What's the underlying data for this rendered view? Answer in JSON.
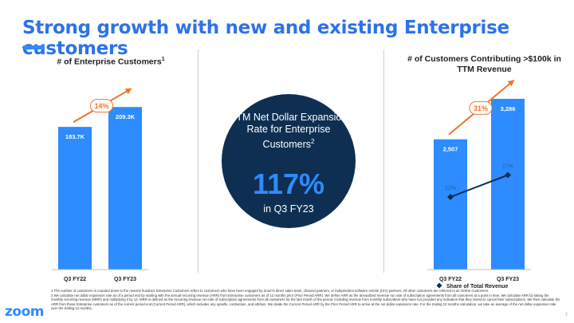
{
  "title": "Strong growth with new and existing Enterprise customers",
  "left_panel": {
    "title_main": "# of Enterprise Customers",
    "title_sup": "1",
    "growth_badge": "14%"
  },
  "center": {
    "text_main": "TTM Net Dollar Expansion Rate for Enterprise Customers",
    "text_sup": "2",
    "value": "117%",
    "subtext": "in Q3 FY23"
  },
  "right_panel": {
    "title": "# of Customers Contributing >$100k in TTM Revenue",
    "growth_badge": "31%",
    "legend_label": "Share of Total Revenue"
  },
  "chart_data": [
    {
      "type": "bar",
      "title": "# of Enterprise Customers",
      "categories": [
        "Q3 FY22",
        "Q3 FY23"
      ],
      "values": [
        183.7,
        209.3
      ],
      "labels": [
        "183.7K",
        "209.3K"
      ],
      "ylim": [
        0,
        230
      ],
      "grid": false
    },
    {
      "type": "bar",
      "title": "# of Customers Contributing >$100k in TTM Revenue",
      "categories": [
        "Q3 FY22",
        "Q3 FY23"
      ],
      "values": [
        2507,
        3286
      ],
      "labels": [
        "2,507",
        "3,286"
      ],
      "ylim": [
        0,
        3500
      ],
      "grid": false,
      "line_series": {
        "name": "Share of Total Revenue",
        "values": [
          22,
          27
        ],
        "labels": [
          "22%",
          "27%"
        ]
      }
    }
  ],
  "colors": {
    "bar": "#2d8cff",
    "title": "#2d72e8",
    "circle": "#0e2f52",
    "arrow": "#f0762b",
    "line": "#0e2f52"
  },
  "footnotes": [
    "1 The number of customers is rounded down to the nearest hundred. Enterprise Customers refers to customers who have been engaged by Zoom's direct sales team, channel partners, or independent software vendor (ISV) partners. All other customers are referred to as Online Customers.",
    "2 We calculate net dollar expansion rate as of a period end by starting with the annual recurring revenue (ARR) from Enterprise customers as of 12 months prior (Prior Period ARR). We define ARR as the annualized revenue run rate of subscription agreements from all customers at a point in time. We calculate ARR by taking the monthly recurring revenue (MRR) and multiplying it by 12. MRR is defined as the recurring revenue run-rate of subscription agreements from all customers for the last month of the period, including revenue from monthly subscribers who have not provided any indication that they intend to cancel their subscriptions. We then calculate the ARR from these Enterprise customers as of the current period end (Current Period ARR), which includes any upsells, contraction, and attrition. We divide the Current Period ARR by the Prior Period ARR to arrive at the net dollar expansion rate. For the trailing 12 months calculation, we take an average of the net dollar expansion rate over the trailing 12 months."
  ],
  "logo": "zoom",
  "page_number": "7"
}
